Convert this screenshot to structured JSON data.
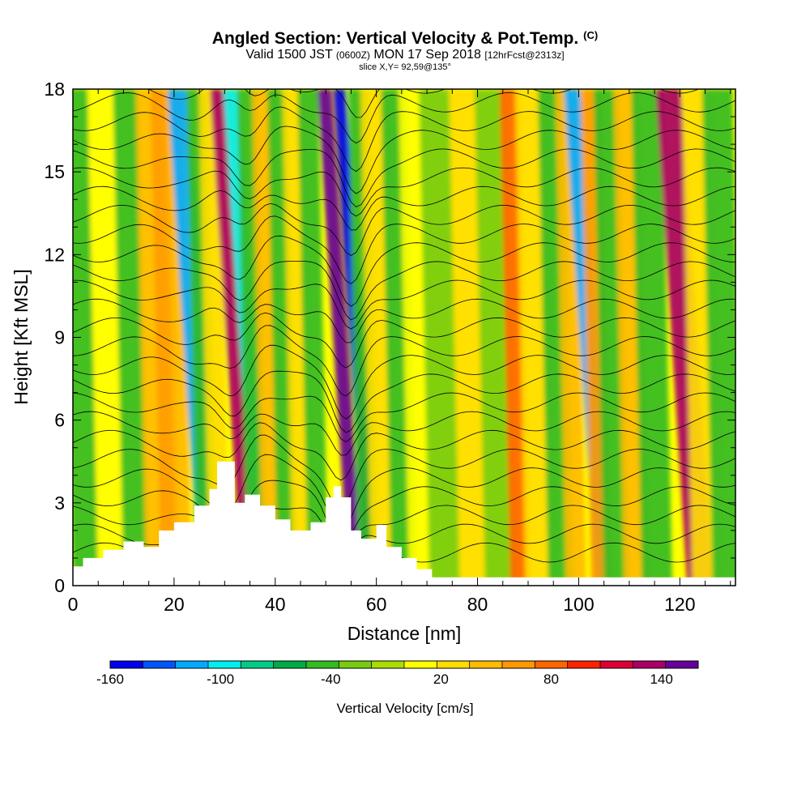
{
  "header": {
    "title": "Angled Section: Vertical Velocity & Pot.Temp.",
    "title_flag": "(C)",
    "valid_prefix": "Valid 1500 JST",
    "valid_utc": "(0600Z)",
    "valid_date": "MON 17 Sep 2018",
    "forecast": "[12hrFcst@2313z]",
    "slice": "slice X,Y= 92,59@135°"
  },
  "chart_data": {
    "type": "heatmap",
    "xlabel": "Distance [nm]",
    "ylabel": "Height [Kft MSL]",
    "xlim": [
      0,
      131
    ],
    "ylim": [
      0,
      18
    ],
    "x_ticks": [
      0,
      20,
      40,
      60,
      80,
      100,
      120
    ],
    "y_ticks": [
      0,
      3,
      6,
      9,
      12,
      15,
      18
    ],
    "colorbar": {
      "title": "Vertical Velocity [cm/s]",
      "range": [
        -160,
        160
      ],
      "labels": [
        -160,
        -100,
        -40,
        20,
        80,
        140
      ],
      "colors": [
        "#0000ee",
        "#0055ff",
        "#00aaff",
        "#00eeee",
        "#00cc88",
        "#00aa44",
        "#33bb22",
        "#77cc11",
        "#aadd00",
        "#ffff00",
        "#ffdd00",
        "#ffbb00",
        "#ff9900",
        "#ff6600",
        "#ff2200",
        "#dd0033",
        "#aa0066",
        "#660099"
      ]
    },
    "bands": [
      {
        "x": 1,
        "w": 2.5,
        "v": -50
      },
      {
        "x": 6,
        "w": 2.5,
        "v": 10
      },
      {
        "x": 11,
        "w": 2.5,
        "v": -40
      },
      {
        "x": 15,
        "w": 2,
        "v": 40
      },
      {
        "x": 18,
        "w": 2,
        "v": 70
      },
      {
        "x": 20.5,
        "w": 1.5,
        "v": 40
      },
      {
        "x": 22.5,
        "w": 2,
        "v": -110
      },
      {
        "x": 25,
        "w": 2,
        "v": -50
      },
      {
        "x": 27.5,
        "w": 2,
        "v": 20
      },
      {
        "x": 30.5,
        "w": 1.6,
        "v": 140
      },
      {
        "x": 33,
        "w": 1.5,
        "v": -100
      },
      {
        "x": 35,
        "w": 2,
        "v": -40
      },
      {
        "x": 38,
        "w": 2,
        "v": 40
      },
      {
        "x": 41,
        "w": 2,
        "v": -40
      },
      {
        "x": 44,
        "w": 2,
        "v": 20
      },
      {
        "x": 47,
        "w": 2,
        "v": -50
      },
      {
        "x": 51.5,
        "w": 1.4,
        "v": 150
      },
      {
        "x": 54.5,
        "w": 1.2,
        "v": -160
      },
      {
        "x": 57,
        "w": 2,
        "v": -40
      },
      {
        "x": 60,
        "w": 2.5,
        "v": 30
      },
      {
        "x": 64,
        "w": 2.5,
        "v": -40
      },
      {
        "x": 68,
        "w": 3,
        "v": 10
      },
      {
        "x": 72,
        "w": 3,
        "v": -20
      },
      {
        "x": 78,
        "w": 3,
        "v": 30
      },
      {
        "x": 83,
        "w": 3,
        "v": -30
      },
      {
        "x": 87,
        "w": 2,
        "v": 80
      },
      {
        "x": 91,
        "w": 3,
        "v": 20
      },
      {
        "x": 95,
        "w": 2.5,
        "v": -40
      },
      {
        "x": 98,
        "w": 2,
        "v": 40
      },
      {
        "x": 100.5,
        "w": 1.6,
        "v": -110
      },
      {
        "x": 103,
        "w": 2,
        "v": 60
      },
      {
        "x": 106,
        "w": 2.5,
        "v": -40
      },
      {
        "x": 110,
        "w": 2.5,
        "v": 40
      },
      {
        "x": 114,
        "w": 3,
        "v": -50
      },
      {
        "x": 119.5,
        "w": 2.5,
        "v": 130
      },
      {
        "x": 124,
        "w": 3,
        "v": 20
      },
      {
        "x": 128,
        "w": 3,
        "v": -40
      }
    ],
    "terrain": [
      [
        0,
        0.7
      ],
      [
        2,
        1.0
      ],
      [
        6,
        1.3
      ],
      [
        10,
        1.6
      ],
      [
        14,
        1.4
      ],
      [
        17,
        2.0
      ],
      [
        20,
        2.3
      ],
      [
        24,
        2.9
      ],
      [
        27,
        3.5
      ],
      [
        28.5,
        4.5
      ],
      [
        30.5,
        4.5
      ],
      [
        32,
        3.0
      ],
      [
        34,
        3.3
      ],
      [
        37,
        2.9
      ],
      [
        40,
        2.4
      ],
      [
        43,
        2.0
      ],
      [
        47,
        2.3
      ],
      [
        50,
        3.2
      ],
      [
        51.5,
        3.6
      ],
      [
        53,
        3.2
      ],
      [
        55,
        2.0
      ],
      [
        57,
        1.7
      ],
      [
        60,
        2.2
      ],
      [
        62,
        1.4
      ],
      [
        65,
        1.0
      ],
      [
        68,
        0.6
      ],
      [
        71,
        0.3
      ],
      [
        131,
        0.3
      ]
    ]
  }
}
